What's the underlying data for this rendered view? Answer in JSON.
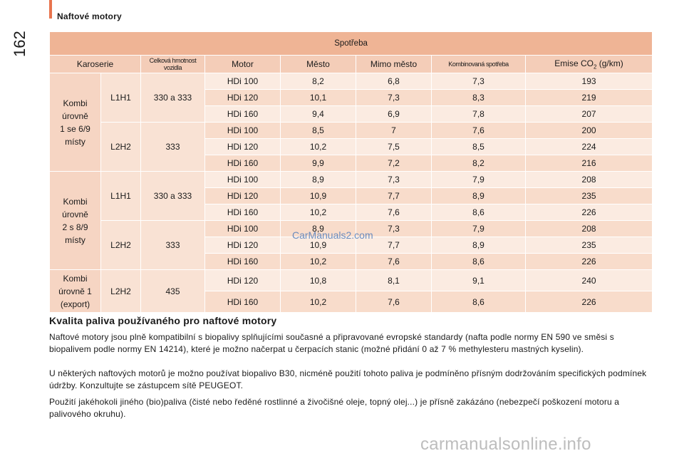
{
  "header": {
    "section": "Naftové motory",
    "page": "162"
  },
  "table": {
    "title": "Spotřeba",
    "columns": {
      "body": "Karoserie",
      "weight": "Celková hmotnost vozidla",
      "engine": "Motor",
      "city": "Město",
      "outside": "Mimo město",
      "combined": "Kombinovaná spotřeba",
      "emission_prefix": "Emise CO",
      "emission_sub": "2",
      "emission_suffix": " (g/km)"
    },
    "groups": [
      {
        "body": [
          "Kombi",
          "úrovně",
          "1 se 6/9",
          "místy"
        ],
        "sub": [
          {
            "size": "L1H1",
            "weight": "330 a 333",
            "rows": [
              [
                "HDi 100",
                "8,2",
                "6,8",
                "7,3",
                "193"
              ],
              [
                "HDi 120",
                "10,1",
                "7,3",
                "8,3",
                "219"
              ],
              [
                "HDi 160",
                "9,4",
                "6,9",
                "7,8",
                "207"
              ]
            ]
          },
          {
            "size": "L2H2",
            "weight": "333",
            "rows": [
              [
                "HDi 100",
                "8,5",
                "7",
                "7,6",
                "200"
              ],
              [
                "HDi 120",
                "10,2",
                "7,5",
                "8,5",
                "224"
              ],
              [
                "HDi 160",
                "9,9",
                "7,2",
                "8,2",
                "216"
              ]
            ]
          }
        ]
      },
      {
        "body": [
          "Kombi",
          "úrovně",
          "2 s 8/9",
          "místy"
        ],
        "sub": [
          {
            "size": "L1H1",
            "weight": "330 a 333",
            "rows": [
              [
                "HDi 100",
                "8,9",
                "7,3",
                "7,9",
                "208"
              ],
              [
                "HDi 120",
                "10,9",
                "7,7",
                "8,9",
                "235"
              ],
              [
                "HDi 160",
                "10,2",
                "7,6",
                "8,6",
                "226"
              ]
            ]
          },
          {
            "size": "L2H2",
            "weight": "333",
            "rows": [
              [
                "HDi 100",
                "8,9",
                "7,3",
                "7,9",
                "208"
              ],
              [
                "HDi 120",
                "10,9",
                "7,7",
                "8,9",
                "235"
              ],
              [
                "HDi 160",
                "10,2",
                "7,6",
                "8,6",
                "226"
              ]
            ]
          }
        ]
      },
      {
        "body": [
          "Kombi",
          "úrovně 1",
          "(export)"
        ],
        "sub": [
          {
            "size": "L2H2",
            "weight": "435",
            "rows": [
              [
                "HDi 120",
                "10,8",
                "8,1",
                "9,1",
                "240"
              ],
              [
                "HDi 160",
                "10,2",
                "7,6",
                "8,6",
                "226"
              ]
            ]
          }
        ]
      }
    ]
  },
  "fuel": {
    "title": "Kvalita paliva používaného pro naftové motory",
    "p1": "Naftové motory jsou plně kompatibilní s biopalivy splňujícími současné a připravované evropské standardy (nafta podle normy EN 590 ve směsi s biopalivem podle normy EN 14214), které je možno načerpat u čerpacích stanic (možné přidání 0 až 7 % methylesteru mastných kyselin).",
    "p2": "U některých naftových motorů je možno používat biopalivo B30, nicméně použití tohoto paliva je podmíněno přísným dodržováním specifických podmínek údržby. Konzultujte se zástupcem sítě PEUGEOT.",
    "p3": "Použití jakéhokoli jiného (bio)paliva (čisté nebo ředěné rostlinné a živočišné oleje, topný olej...) je přísně zakázáno (nebezpečí poškození motoru a palivového okruhu)."
  },
  "watermarks": {
    "center": "CarManuals2.com",
    "footer": "carmanualsonline.info"
  }
}
